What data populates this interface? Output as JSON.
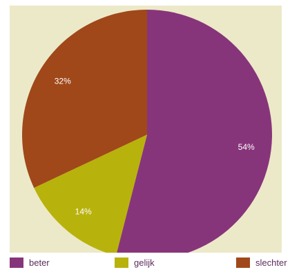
{
  "chart_data": {
    "type": "pie",
    "title": "",
    "slices": [
      {
        "label": "beter",
        "value": 54,
        "display": "54%",
        "color": "#87357a"
      },
      {
        "label": "gelijk",
        "value": 14,
        "display": "14%",
        "color": "#b8b20c"
      },
      {
        "label": "slechter",
        "value": 32,
        "display": "32%",
        "color": "#a0481a"
      }
    ],
    "start_angle_deg": 0,
    "direction": "clockwise",
    "legend_position": "bottom"
  }
}
